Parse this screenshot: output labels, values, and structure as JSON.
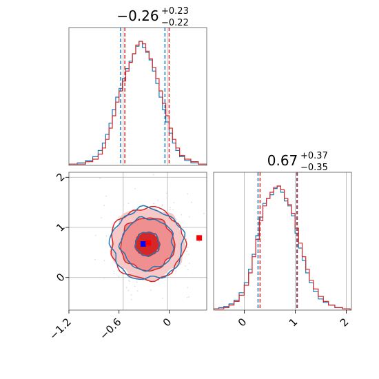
{
  "chart_data": [
    {
      "type": "area",
      "panel": "marginal-top",
      "title": "−0.26",
      "title_sup": "+0.23",
      "title_sub": "−0.22",
      "xlim": [
        -1.2,
        0.45
      ],
      "ticks_x": [
        -1.2,
        -0.6,
        0.0
      ],
      "grid": true,
      "series": [
        {
          "color": "#1f77b4",
          "x": [
            -1.15,
            -1.05,
            -0.95,
            -0.88,
            -0.82,
            -0.78,
            -0.74,
            -0.7,
            -0.66,
            -0.62,
            -0.58,
            -0.54,
            -0.5,
            -0.46,
            -0.42,
            -0.38,
            -0.34,
            -0.3,
            -0.26,
            -0.22,
            -0.18,
            -0.14,
            -0.1,
            -0.06,
            -0.02,
            0.02,
            0.06,
            0.1,
            0.15,
            0.22,
            0.3,
            0.4
          ],
          "values": [
            0.01,
            0.02,
            0.04,
            0.07,
            0.12,
            0.18,
            0.25,
            0.34,
            0.45,
            0.55,
            0.62,
            0.7,
            0.78,
            0.84,
            0.9,
            0.96,
            1.0,
            0.95,
            0.91,
            0.85,
            0.76,
            0.66,
            0.55,
            0.45,
            0.35,
            0.26,
            0.18,
            0.12,
            0.07,
            0.04,
            0.02,
            0.01
          ]
        },
        {
          "color": "#d62728",
          "x": [
            -1.15,
            -1.05,
            -0.95,
            -0.88,
            -0.82,
            -0.78,
            -0.74,
            -0.7,
            -0.66,
            -0.62,
            -0.58,
            -0.54,
            -0.5,
            -0.46,
            -0.42,
            -0.38,
            -0.34,
            -0.3,
            -0.26,
            -0.22,
            -0.18,
            -0.14,
            -0.1,
            -0.06,
            -0.02,
            0.02,
            0.06,
            0.1,
            0.15,
            0.22,
            0.3,
            0.4
          ],
          "values": [
            0.01,
            0.01,
            0.03,
            0.05,
            0.09,
            0.14,
            0.21,
            0.3,
            0.4,
            0.51,
            0.6,
            0.68,
            0.76,
            0.83,
            0.9,
            0.97,
            1.0,
            0.98,
            0.92,
            0.86,
            0.79,
            0.7,
            0.6,
            0.5,
            0.4,
            0.3,
            0.21,
            0.14,
            0.08,
            0.05,
            0.03,
            0.01
          ]
        }
      ],
      "quantile_lines": [
        {
          "color": "#1f77b4",
          "values": [
            -0.58,
            -0.05
          ]
        },
        {
          "color": "#d62728",
          "values": [
            -0.53,
            0.0
          ]
        }
      ],
      "truth_lines": [
        -0.55,
        -0.02
      ]
    },
    {
      "type": "heatmap",
      "panel": "joint",
      "xlim": [
        -1.2,
        0.45
      ],
      "ylim": [
        -0.65,
        2.1
      ],
      "ticks_x": [
        -1.2,
        -0.6,
        0.0
      ],
      "ticks_y": [
        0,
        1,
        2
      ],
      "grid": true,
      "center": {
        "x": -0.26,
        "y": 0.67
      },
      "contour_levels": [
        0.39,
        0.86,
        1.18
      ],
      "spread": {
        "x": 0.22,
        "y": 0.36
      },
      "colors": {
        "dark": "#d62728",
        "mid": "#ef8f8f",
        "light": "#f6c8c8",
        "blue": "#1f77b4"
      },
      "markers": [
        {
          "x": -0.31,
          "y": 0.67,
          "color": "#0000ff"
        },
        {
          "x": -0.25,
          "y": 0.69,
          "color": "#ff0000"
        },
        {
          "x": 0.36,
          "y": 0.79,
          "color": "#ff0000"
        }
      ]
    },
    {
      "type": "area",
      "panel": "marginal-right",
      "title": "0.67",
      "title_sup": "+0.37",
      "title_sub": "−0.35",
      "xlim": [
        -0.6,
        2.1
      ],
      "ticks_x": [
        0,
        1,
        2
      ],
      "grid": true,
      "series": [
        {
          "color": "#1f77b4",
          "x": [
            -0.55,
            -0.45,
            -0.35,
            -0.25,
            -0.15,
            -0.05,
            0.05,
            0.12,
            0.19,
            0.26,
            0.33,
            0.4,
            0.47,
            0.54,
            0.61,
            0.68,
            0.75,
            0.82,
            0.89,
            0.96,
            1.03,
            1.1,
            1.17,
            1.24,
            1.31,
            1.4,
            1.5,
            1.6,
            1.7,
            1.85,
            2.0
          ],
          "values": [
            0.01,
            0.02,
            0.03,
            0.05,
            0.08,
            0.14,
            0.22,
            0.33,
            0.45,
            0.6,
            0.75,
            0.86,
            0.9,
            0.93,
            0.98,
            1.0,
            0.95,
            0.88,
            0.84,
            0.76,
            0.62,
            0.5,
            0.4,
            0.3,
            0.22,
            0.15,
            0.09,
            0.06,
            0.04,
            0.02,
            0.01
          ]
        },
        {
          "color": "#d62728",
          "x": [
            -0.55,
            -0.45,
            -0.35,
            -0.25,
            -0.15,
            -0.05,
            0.05,
            0.12,
            0.19,
            0.26,
            0.33,
            0.4,
            0.47,
            0.54,
            0.61,
            0.68,
            0.75,
            0.82,
            0.89,
            0.96,
            1.03,
            1.1,
            1.17,
            1.24,
            1.31,
            1.4,
            1.5,
            1.6,
            1.7,
            1.85,
            2.0
          ],
          "values": [
            0.01,
            0.01,
            0.02,
            0.04,
            0.07,
            0.12,
            0.2,
            0.3,
            0.43,
            0.57,
            0.72,
            0.84,
            0.9,
            0.95,
            0.99,
            1.0,
            0.97,
            0.9,
            0.85,
            0.78,
            0.66,
            0.54,
            0.43,
            0.33,
            0.24,
            0.17,
            0.11,
            0.07,
            0.04,
            0.02,
            0.01
          ]
        }
      ],
      "quantile_lines": [
        {
          "color": "#1f77b4",
          "values": [
            0.27,
            1.03
          ]
        },
        {
          "color": "#d62728",
          "values": [
            0.31,
            1.04
          ]
        }
      ],
      "truth_lines": [
        0.0,
        1.0,
        2.0
      ]
    }
  ]
}
